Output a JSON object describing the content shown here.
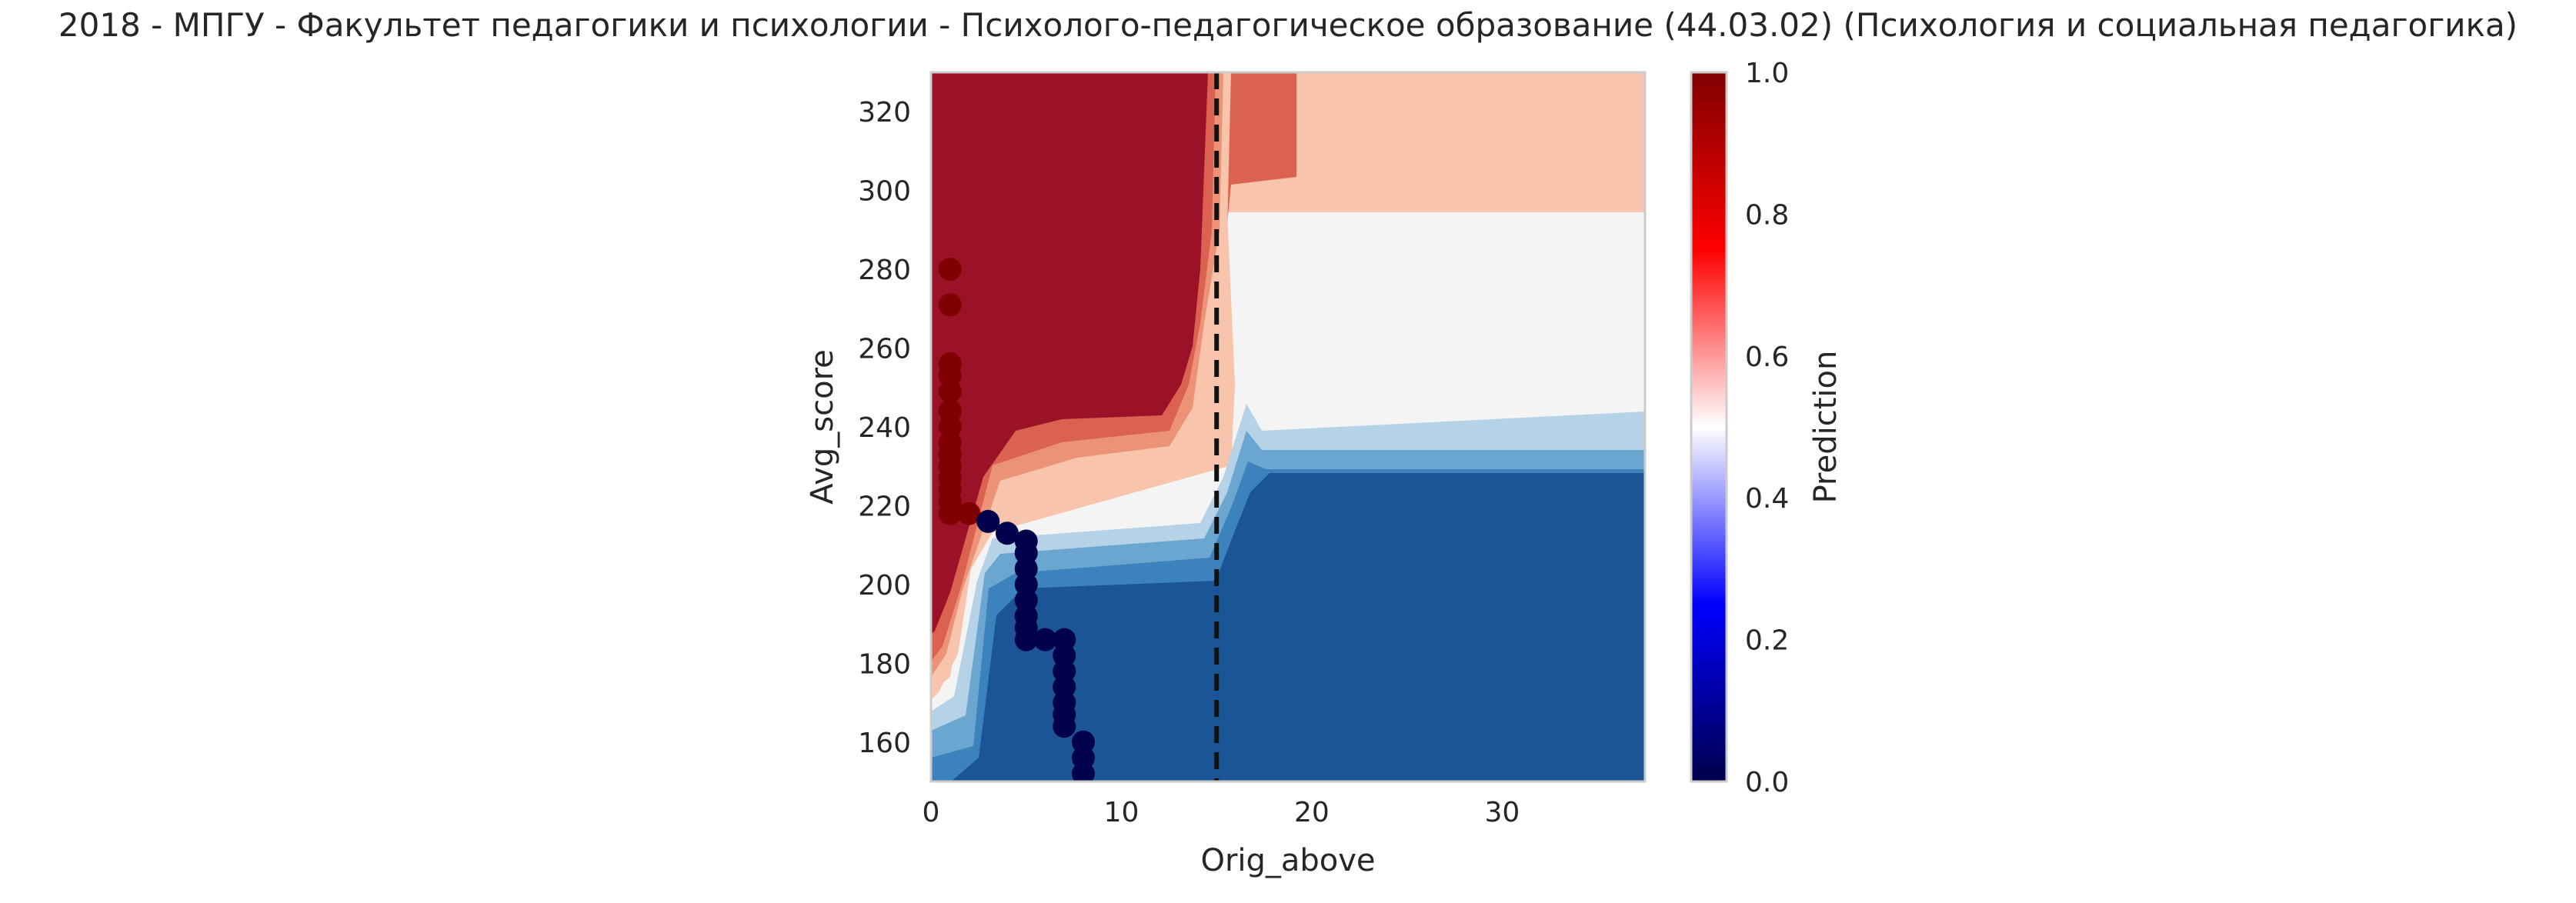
{
  "chart_data": {
    "type": "heatmap",
    "subtype": "filled-contour-with-scatter",
    "title": "2018 - МПГУ - Факультет педагогики и психологии - Психолого-педагогическое образование (44.03.02) (Психология и социальная педагогика)",
    "xlabel": "Orig_above",
    "ylabel": "Avg_score",
    "xlim": [
      0,
      37.5
    ],
    "ylim": [
      150,
      330
    ],
    "xticks": [
      0,
      10,
      20,
      30
    ],
    "yticks": [
      160,
      180,
      200,
      220,
      240,
      260,
      280,
      300,
      320
    ],
    "vertical_line": {
      "x": 15,
      "style": "dashed",
      "color": "#111111"
    },
    "colorbar": {
      "label": "Prediction",
      "range": [
        0,
        1
      ],
      "ticks": [
        "0.0",
        "0.2",
        "0.4",
        "0.6",
        "0.8",
        "1.0"
      ],
      "colormap": "seismic"
    },
    "contour_levels": [
      {
        "min": 0.0,
        "max": 0.1,
        "color": "#1b5596"
      },
      {
        "min": 0.1,
        "max": 0.2,
        "color": "#3c83bd"
      },
      {
        "min": 0.2,
        "max": 0.3,
        "color": "#6aa6d0"
      },
      {
        "min": 0.3,
        "max": 0.4,
        "color": "#b5d2e7"
      },
      {
        "min": 0.4,
        "max": 0.5,
        "color": "#f4f4f4"
      },
      {
        "min": 0.5,
        "max": 0.6,
        "color": "#f8c4ab"
      },
      {
        "min": 0.6,
        "max": 0.7,
        "color": "#ec9377"
      },
      {
        "min": 0.7,
        "max": 0.8,
        "color": "#db6250"
      },
      {
        "min": 0.8,
        "max": 1.0,
        "color": "#9b1127"
      }
    ],
    "scatter_series": [
      {
        "name": "prediction 1.0",
        "color": "#7f0000",
        "points": [
          [
            1,
            280
          ],
          [
            1,
            271
          ],
          [
            1,
            256
          ],
          [
            1,
            253
          ],
          [
            1,
            249
          ],
          [
            1,
            244
          ],
          [
            1,
            240
          ],
          [
            1,
            236
          ],
          [
            1,
            233
          ],
          [
            1,
            230
          ],
          [
            1,
            227
          ],
          [
            1,
            224
          ],
          [
            1,
            221
          ],
          [
            1,
            218
          ],
          [
            2,
            218
          ]
        ]
      },
      {
        "name": "prediction 0.0",
        "color": "#00004c",
        "points": [
          [
            3,
            216
          ],
          [
            4,
            213
          ],
          [
            5,
            211
          ],
          [
            5,
            208
          ],
          [
            5,
            204
          ],
          [
            5,
            200
          ],
          [
            5,
            196
          ],
          [
            5,
            192
          ],
          [
            5,
            189
          ],
          [
            5,
            186
          ],
          [
            6,
            186
          ],
          [
            7,
            186
          ],
          [
            7,
            182
          ],
          [
            7,
            178
          ],
          [
            7,
            174
          ],
          [
            7,
            170
          ],
          [
            7,
            167
          ],
          [
            7,
            164
          ],
          [
            8,
            160
          ],
          [
            8,
            156
          ],
          [
            8,
            152
          ]
        ]
      }
    ]
  }
}
